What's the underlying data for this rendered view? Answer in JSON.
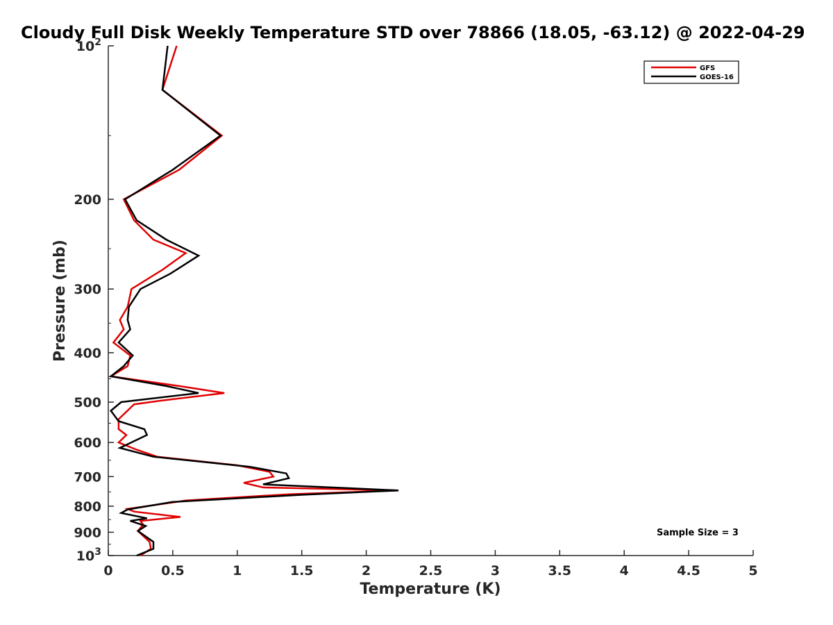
{
  "chart_data": {
    "type": "line",
    "title": "Cloudy Full Disk Weekly Temperature STD over 78866 (18.05, -63.12) @ 2022-04-29",
    "xlabel": "Temperature (K)",
    "ylabel": "Pressure (mb)",
    "xlim": [
      0,
      5
    ],
    "ylim": [
      100,
      1000
    ],
    "yscale": "log",
    "y_reversed": true,
    "x_ticks": [
      "0",
      "0.5",
      "1",
      "1.5",
      "2",
      "2.5",
      "3",
      "3.5",
      "4",
      "4.5",
      "5"
    ],
    "y_ticks": [
      {
        "value": 100,
        "base": "10",
        "exp": "2"
      },
      {
        "value": 200,
        "label": "200"
      },
      {
        "value": 300,
        "label": "300"
      },
      {
        "value": 400,
        "label": "400"
      },
      {
        "value": 500,
        "label": "500"
      },
      {
        "value": 600,
        "label": "600"
      },
      {
        "value": 700,
        "label": "700"
      },
      {
        "value": 800,
        "label": "800"
      },
      {
        "value": 900,
        "label": "900"
      },
      {
        "value": 1000,
        "base": "10",
        "exp": "3"
      }
    ],
    "legend_position": "top-right",
    "annotation": "Sample Size = 3",
    "series": [
      {
        "name": "GFS",
        "color": "#e00000",
        "points": [
          [
            0.53,
            100
          ],
          [
            0.42,
            122
          ],
          [
            0.88,
            150
          ],
          [
            0.55,
            175
          ],
          [
            0.12,
            200
          ],
          [
            0.2,
            220
          ],
          [
            0.35,
            240
          ],
          [
            0.6,
            255
          ],
          [
            0.42,
            275
          ],
          [
            0.18,
            300
          ],
          [
            0.15,
            325
          ],
          [
            0.09,
            345
          ],
          [
            0.12,
            360
          ],
          [
            0.04,
            382
          ],
          [
            0.17,
            405
          ],
          [
            0.15,
            425
          ],
          [
            0.02,
            445
          ],
          [
            0.55,
            465
          ],
          [
            0.9,
            480
          ],
          [
            0.4,
            497
          ],
          [
            0.2,
            505
          ],
          [
            0.08,
            540
          ],
          [
            0.08,
            565
          ],
          [
            0.14,
            580
          ],
          [
            0.08,
            600
          ],
          [
            0.22,
            620
          ],
          [
            0.38,
            640
          ],
          [
            1.0,
            665
          ],
          [
            1.25,
            685
          ],
          [
            1.28,
            700
          ],
          [
            1.05,
            720
          ],
          [
            1.2,
            735
          ],
          [
            2.25,
            745
          ],
          [
            1.4,
            758
          ],
          [
            0.6,
            780
          ],
          [
            0.15,
            810
          ],
          [
            0.2,
            820
          ],
          [
            0.56,
            840
          ],
          [
            0.25,
            855
          ],
          [
            0.27,
            870
          ],
          [
            0.23,
            895
          ],
          [
            0.32,
            940
          ],
          [
            0.33,
            970
          ],
          [
            0.25,
            1000
          ]
        ]
      },
      {
        "name": "GOES-16",
        "color": "#000000",
        "points": [
          [
            0.46,
            100
          ],
          [
            0.42,
            122
          ],
          [
            0.87,
            150
          ],
          [
            0.5,
            175
          ],
          [
            0.13,
            200
          ],
          [
            0.22,
            220
          ],
          [
            0.45,
            240
          ],
          [
            0.7,
            258
          ],
          [
            0.48,
            280
          ],
          [
            0.25,
            300
          ],
          [
            0.16,
            325
          ],
          [
            0.15,
            345
          ],
          [
            0.17,
            360
          ],
          [
            0.08,
            382
          ],
          [
            0.19,
            405
          ],
          [
            0.12,
            425
          ],
          [
            0.02,
            445
          ],
          [
            0.45,
            465
          ],
          [
            0.7,
            480
          ],
          [
            0.1,
            500
          ],
          [
            0.02,
            520
          ],
          [
            0.08,
            545
          ],
          [
            0.28,
            565
          ],
          [
            0.3,
            580
          ],
          [
            0.09,
            615
          ],
          [
            0.35,
            640
          ],
          [
            1.1,
            670
          ],
          [
            1.38,
            690
          ],
          [
            1.4,
            705
          ],
          [
            1.2,
            725
          ],
          [
            2.25,
            745
          ],
          [
            1.5,
            760
          ],
          [
            0.5,
            785
          ],
          [
            0.15,
            812
          ],
          [
            0.1,
            825
          ],
          [
            0.3,
            845
          ],
          [
            0.17,
            855
          ],
          [
            0.29,
            875
          ],
          [
            0.23,
            895
          ],
          [
            0.35,
            940
          ],
          [
            0.35,
            970
          ],
          [
            0.22,
            1000
          ]
        ]
      }
    ]
  }
}
